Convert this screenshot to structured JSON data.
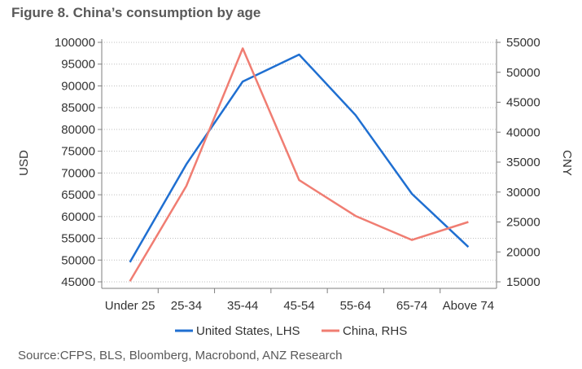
{
  "figure_title": "Figure 8. China’s consumption by age",
  "source_note": "Source:CFPS, BLS, Bloomberg, Macrobond, ANZ Research",
  "chart_data": {
    "type": "line",
    "title": "Figure 8. China’s consumption by age",
    "categories": [
      "Under 25",
      "25-34",
      "35-44",
      "45-54",
      "55-64",
      "65-74",
      "Above 74"
    ],
    "ylabel_left": "USD",
    "ylabel_right": "CNY",
    "ylim_left": [
      45000,
      100000
    ],
    "ylim_right": [
      15000,
      55000
    ],
    "yticks_left": [
      100000,
      95000,
      90000,
      85000,
      80000,
      75000,
      70000,
      65000,
      60000,
      55000,
      50000,
      45000
    ],
    "yticks_right": [
      55000,
      50000,
      45000,
      40000,
      35000,
      30000,
      25000,
      20000,
      15000
    ],
    "grid": true,
    "legend_position": "bottom",
    "series": [
      {
        "name": "United States, LHS",
        "axis": "left",
        "color": "#1f6fd1",
        "values": [
          49500,
          72000,
          91000,
          97200,
          83300,
          65200,
          53000
        ]
      },
      {
        "name": "China, RHS",
        "axis": "right",
        "color": "#f07d72",
        "values": [
          15100,
          31000,
          54000,
          32000,
          26000,
          22000,
          25000
        ]
      }
    ]
  }
}
